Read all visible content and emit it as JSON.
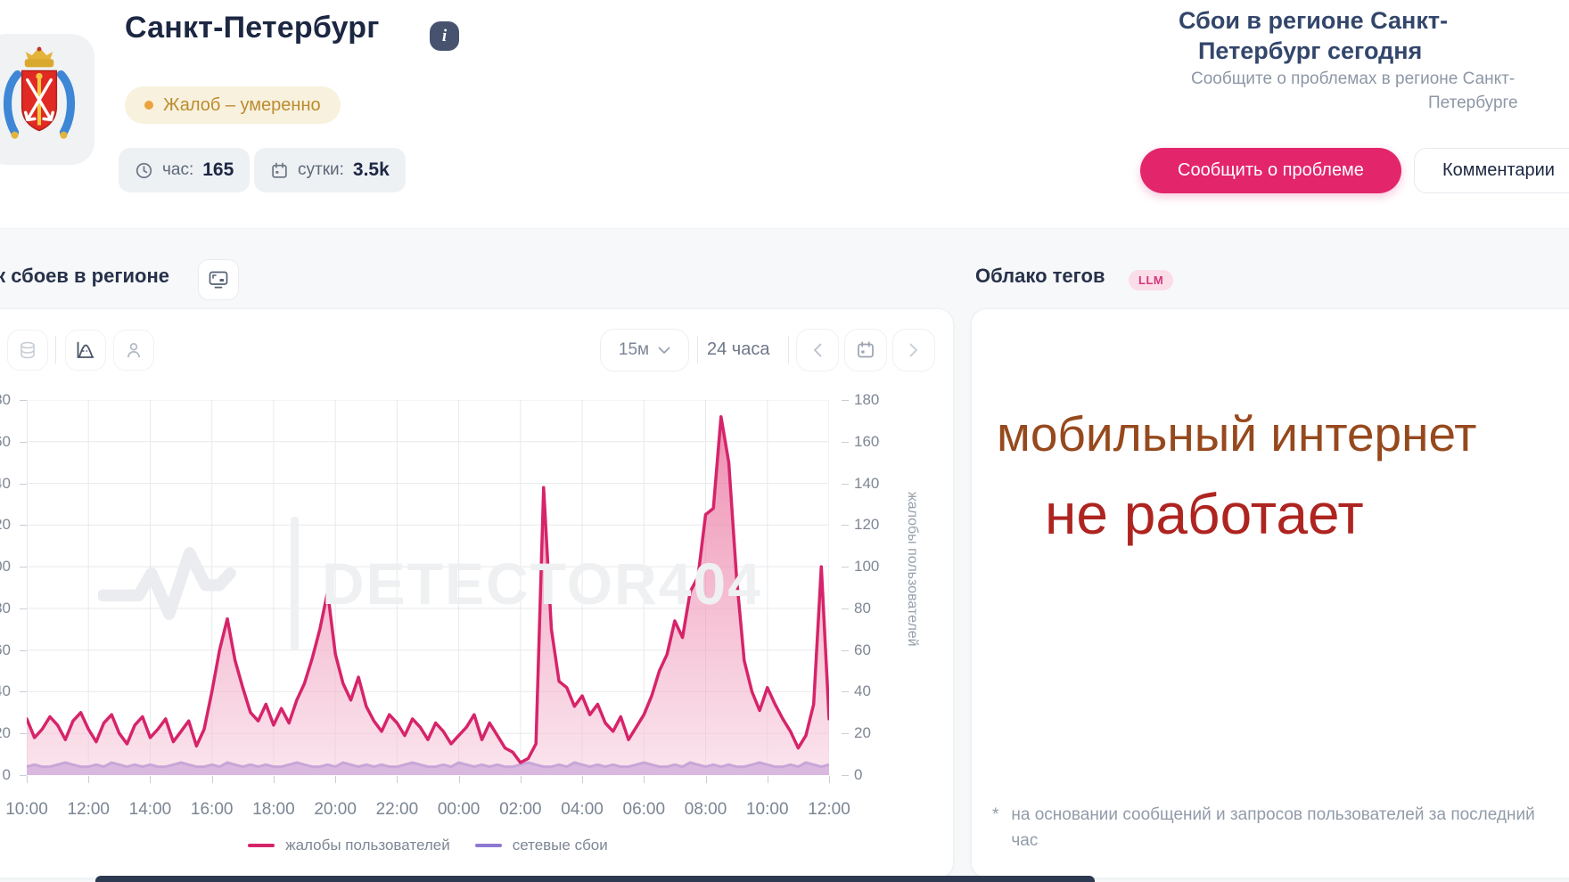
{
  "header": {
    "title": "Санкт-Петербург",
    "info_icon": "i",
    "badge": {
      "label": "Жалоб – умеренно",
      "dot_color": "#eaa33c",
      "text_color": "#bb8c2f"
    },
    "stats": [
      {
        "icon": "clock-icon",
        "label": "час:",
        "value": "165"
      },
      {
        "icon": "calendar-icon",
        "label": "сутки:",
        "value": "3.5k"
      }
    ],
    "right": {
      "heading_line1": "Сбои в регионе Санкт-",
      "heading_line2": "Петербург сегодня",
      "subtext_line1": "Сообщите о проблемах в регионе Санкт-",
      "subtext_line2": "Петербурге",
      "report_button": "Сообщить о проблеме",
      "comments_button": "Комментарии",
      "report_button_color": "#e3256c"
    }
  },
  "chart_card": {
    "title": "График сбоев в регионе",
    "toolbar": {
      "interval": "15м",
      "range": "24 часа"
    }
  },
  "watermark": {
    "text": "DETECTOR404"
  },
  "chart_data": {
    "type": "area",
    "title": "График сбоев в регионе",
    "x_start": "10:00",
    "x_step_minutes": 15,
    "x_tick_labels": [
      "10:00",
      "12:00",
      "14:00",
      "16:00",
      "18:00",
      "20:00",
      "22:00",
      "00:00",
      "02:00",
      "04:00",
      "06:00",
      "08:00",
      "10:00",
      "12:00"
    ],
    "y_ticks": [
      0,
      20,
      40,
      60,
      80,
      100,
      120,
      140,
      160,
      180
    ],
    "ylim": [
      0,
      180
    ],
    "ylabel_right": "жалобы пользователей",
    "grid": true,
    "legend_position": "bottom",
    "series": [
      {
        "name": "жалобы пользователей",
        "color": "#d6246a",
        "fill_top": "#e75c8e",
        "fill_bottom": "#f6cede",
        "values": [
          27,
          18,
          22,
          28,
          24,
          17,
          26,
          30,
          22,
          16,
          25,
          29,
          20,
          15,
          24,
          28,
          18,
          22,
          27,
          16,
          21,
          26,
          14,
          22,
          40,
          60,
          75,
          55,
          42,
          30,
          26,
          34,
          24,
          32,
          25,
          36,
          44,
          56,
          70,
          88,
          58,
          44,
          36,
          47,
          33,
          26,
          21,
          29,
          25,
          19,
          27,
          23,
          17,
          25,
          21,
          15,
          19,
          23,
          29,
          17,
          25,
          19,
          13,
          11,
          6,
          8,
          15,
          138,
          70,
          45,
          42,
          33,
          38,
          29,
          34,
          25,
          21,
          28,
          17,
          23,
          29,
          38,
          50,
          58,
          74,
          66,
          88,
          95,
          125,
          128,
          172,
          150,
          95,
          55,
          40,
          31,
          42,
          34,
          27,
          21,
          13,
          19,
          34,
          100,
          27
        ]
      },
      {
        "name": "сетевые сбои",
        "color": "#8f78d2",
        "fill": "#b7a0e2",
        "values": [
          4,
          5,
          4,
          4,
          5,
          6,
          5,
          4,
          4,
          5,
          4,
          6,
          5,
          4,
          5,
          4,
          5,
          4,
          4,
          5,
          6,
          5,
          4,
          4,
          5,
          4,
          6,
          5,
          4,
          5,
          4,
          5,
          4,
          4,
          5,
          6,
          5,
          4,
          4,
          5,
          4,
          6,
          5,
          4,
          5,
          4,
          5,
          4,
          4,
          5,
          6,
          5,
          4,
          4,
          5,
          4,
          6,
          5,
          4,
          5,
          4,
          5,
          4,
          4,
          5,
          6,
          5,
          4,
          4,
          5,
          4,
          6,
          5,
          4,
          5,
          4,
          5,
          4,
          4,
          5,
          6,
          5,
          4,
          4,
          5,
          4,
          6,
          5,
          4,
          5,
          4,
          5,
          4,
          4,
          5,
          6,
          5,
          4,
          4,
          5,
          4,
          6,
          5,
          4,
          5
        ]
      }
    ]
  },
  "tag_cloud": {
    "title": "Облако тегов",
    "badge": "LLM",
    "tags": [
      {
        "text": "мобильный интернет",
        "color": "#96491d"
      },
      {
        "text": "не работает",
        "color": "#ae2420"
      }
    ],
    "footnote_star": "*",
    "footnote": "на основании сообщений и запросов пользователей за последний час"
  }
}
